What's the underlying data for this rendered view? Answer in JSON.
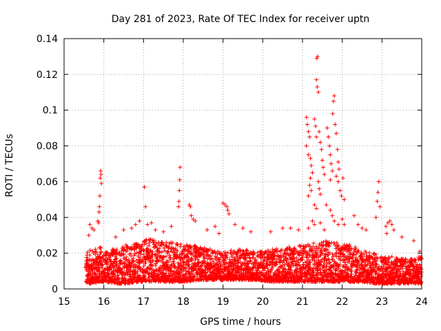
{
  "colors": {
    "marker": "#ff0000",
    "grid": "#a0a0a0",
    "axis": "#000000",
    "background": "#ffffff"
  },
  "chart_data": {
    "type": "scatter",
    "title": "Day 281 of 2023, Rate Of TEC Index for receiver uptn",
    "xlabel": "GPS time / hours",
    "ylabel": "ROTI / TECUs",
    "xlim": [
      15,
      24
    ],
    "ylim": [
      0,
      0.14
    ],
    "xticks": [
      15,
      16,
      17,
      18,
      19,
      20,
      21,
      22,
      23,
      24
    ],
    "yticks": [
      0,
      0.02,
      0.04,
      0.06,
      0.08,
      0.1,
      0.12,
      0.14
    ],
    "ytick_labels": [
      "0",
      "0.02",
      "0.04",
      "0.06",
      "0.08",
      "0.1",
      "0.12",
      "0.14"
    ],
    "grid": true,
    "marker": "plus",
    "series": [
      {
        "name": "ROTI",
        "points": [
          [
            15.92,
            0.066
          ],
          [
            15.93,
            0.064
          ],
          [
            15.91,
            0.062
          ],
          [
            15.94,
            0.059
          ],
          [
            15.9,
            0.052
          ],
          [
            15.89,
            0.046
          ],
          [
            15.88,
            0.043
          ],
          [
            15.65,
            0.036
          ],
          [
            15.7,
            0.034
          ],
          [
            15.75,
            0.033
          ],
          [
            15.62,
            0.03
          ],
          [
            15.85,
            0.038
          ],
          [
            15.87,
            0.037
          ],
          [
            16.3,
            0.029
          ],
          [
            16.5,
            0.033
          ],
          [
            16.7,
            0.034
          ],
          [
            16.8,
            0.036
          ],
          [
            16.9,
            0.038
          ],
          [
            17.02,
            0.057
          ],
          [
            17.05,
            0.046
          ],
          [
            17.1,
            0.036
          ],
          [
            17.2,
            0.037
          ],
          [
            17.3,
            0.033
          ],
          [
            17.5,
            0.032
          ],
          [
            17.7,
            0.035
          ],
          [
            17.92,
            0.068
          ],
          [
            17.91,
            0.061
          ],
          [
            17.9,
            0.055
          ],
          [
            17.89,
            0.049
          ],
          [
            17.88,
            0.046
          ],
          [
            18.15,
            0.047
          ],
          [
            18.18,
            0.046
          ],
          [
            18.2,
            0.041
          ],
          [
            18.25,
            0.039
          ],
          [
            18.3,
            0.038
          ],
          [
            18.6,
            0.033
          ],
          [
            18.8,
            0.035
          ],
          [
            18.9,
            0.031
          ],
          [
            19.0,
            0.048
          ],
          [
            19.05,
            0.047
          ],
          [
            19.1,
            0.046
          ],
          [
            19.12,
            0.044
          ],
          [
            19.15,
            0.042
          ],
          [
            19.3,
            0.036
          ],
          [
            19.5,
            0.034
          ],
          [
            19.7,
            0.032
          ],
          [
            20.2,
            0.032
          ],
          [
            20.5,
            0.034
          ],
          [
            20.7,
            0.034
          ],
          [
            20.9,
            0.033
          ],
          [
            21.1,
            0.096
          ],
          [
            21.12,
            0.092
          ],
          [
            21.15,
            0.088
          ],
          [
            21.18,
            0.085
          ],
          [
            21.1,
            0.08
          ],
          [
            21.15,
            0.075
          ],
          [
            21.2,
            0.073
          ],
          [
            21.22,
            0.069
          ],
          [
            21.25,
            0.065
          ],
          [
            21.2,
            0.062
          ],
          [
            21.18,
            0.058
          ],
          [
            21.22,
            0.055
          ],
          [
            21.15,
            0.052
          ],
          [
            21.38,
            0.13
          ],
          [
            21.36,
            0.129
          ],
          [
            21.35,
            0.117
          ],
          [
            21.37,
            0.113
          ],
          [
            21.4,
            0.11
          ],
          [
            21.3,
            0.095
          ],
          [
            21.33,
            0.091
          ],
          [
            21.35,
            0.085
          ],
          [
            21.42,
            0.088
          ],
          [
            21.45,
            0.082
          ],
          [
            21.48,
            0.078
          ],
          [
            21.5,
            0.072
          ],
          [
            21.52,
            0.068
          ],
          [
            21.55,
            0.064
          ],
          [
            21.4,
            0.06
          ],
          [
            21.42,
            0.056
          ],
          [
            21.45,
            0.053
          ],
          [
            21.3,
            0.047
          ],
          [
            21.35,
            0.045
          ],
          [
            21.62,
            0.09
          ],
          [
            21.65,
            0.085
          ],
          [
            21.68,
            0.08
          ],
          [
            21.7,
            0.075
          ],
          [
            21.72,
            0.07
          ],
          [
            21.75,
            0.066
          ],
          [
            21.7,
            0.061
          ],
          [
            21.8,
            0.108
          ],
          [
            21.78,
            0.105
          ],
          [
            21.76,
            0.098
          ],
          [
            21.82,
            0.092
          ],
          [
            21.85,
            0.087
          ],
          [
            21.88,
            0.078
          ],
          [
            21.9,
            0.071
          ],
          [
            21.92,
            0.067
          ],
          [
            21.85,
            0.063
          ],
          [
            21.9,
            0.06
          ],
          [
            21.95,
            0.055
          ],
          [
            21.98,
            0.052
          ],
          [
            22.02,
            0.062
          ],
          [
            22.05,
            0.05
          ],
          [
            21.6,
            0.047
          ],
          [
            21.7,
            0.044
          ],
          [
            21.75,
            0.041
          ],
          [
            21.8,
            0.038
          ],
          [
            21.9,
            0.036
          ],
          [
            22.0,
            0.039
          ],
          [
            22.05,
            0.036
          ],
          [
            21.25,
            0.038
          ],
          [
            21.3,
            0.036
          ],
          [
            21.15,
            0.034
          ],
          [
            21.45,
            0.037
          ],
          [
            21.55,
            0.033
          ],
          [
            22.3,
            0.041
          ],
          [
            22.4,
            0.036
          ],
          [
            22.5,
            0.034
          ],
          [
            22.6,
            0.033
          ],
          [
            22.85,
            0.04
          ],
          [
            22.92,
            0.06
          ],
          [
            22.9,
            0.054
          ],
          [
            22.88,
            0.049
          ],
          [
            22.95,
            0.046
          ],
          [
            23.1,
            0.035
          ],
          [
            23.15,
            0.037
          ],
          [
            23.2,
            0.038
          ],
          [
            23.25,
            0.036
          ],
          [
            23.3,
            0.033
          ],
          [
            23.12,
            0.031
          ],
          [
            23.5,
            0.029
          ],
          [
            23.8,
            0.027
          ],
          [
            23.95,
            0.021
          ]
        ]
      }
    ],
    "density_profile": [
      [
        15.55,
        0.021,
        0.003
      ],
      [
        15.7,
        0.022,
        0.003
      ],
      [
        15.9,
        0.024,
        0.004
      ],
      [
        16.0,
        0.021,
        0.004
      ],
      [
        16.3,
        0.023,
        0.003
      ],
      [
        16.6,
        0.025,
        0.003
      ],
      [
        16.9,
        0.027,
        0.004
      ],
      [
        17.2,
        0.028,
        0.004
      ],
      [
        17.5,
        0.027,
        0.004
      ],
      [
        17.8,
        0.026,
        0.004
      ],
      [
        18.1,
        0.025,
        0.004
      ],
      [
        18.4,
        0.024,
        0.005
      ],
      [
        18.7,
        0.022,
        0.005
      ],
      [
        19.0,
        0.021,
        0.005
      ],
      [
        19.3,
        0.022,
        0.005
      ],
      [
        19.6,
        0.022,
        0.005
      ],
      [
        19.9,
        0.021,
        0.005
      ],
      [
        20.2,
        0.022,
        0.004
      ],
      [
        20.5,
        0.023,
        0.004
      ],
      [
        20.8,
        0.024,
        0.004
      ],
      [
        21.0,
        0.025,
        0.004
      ],
      [
        21.3,
        0.026,
        0.004
      ],
      [
        21.6,
        0.027,
        0.004
      ],
      [
        21.9,
        0.026,
        0.004
      ],
      [
        22.2,
        0.025,
        0.004
      ],
      [
        22.5,
        0.022,
        0.004
      ],
      [
        22.8,
        0.02,
        0.003
      ],
      [
        23.0,
        0.019,
        0.003
      ],
      [
        23.3,
        0.018,
        0.003
      ],
      [
        23.6,
        0.017,
        0.003
      ],
      [
        24.0,
        0.018,
        0.003
      ]
    ]
  }
}
